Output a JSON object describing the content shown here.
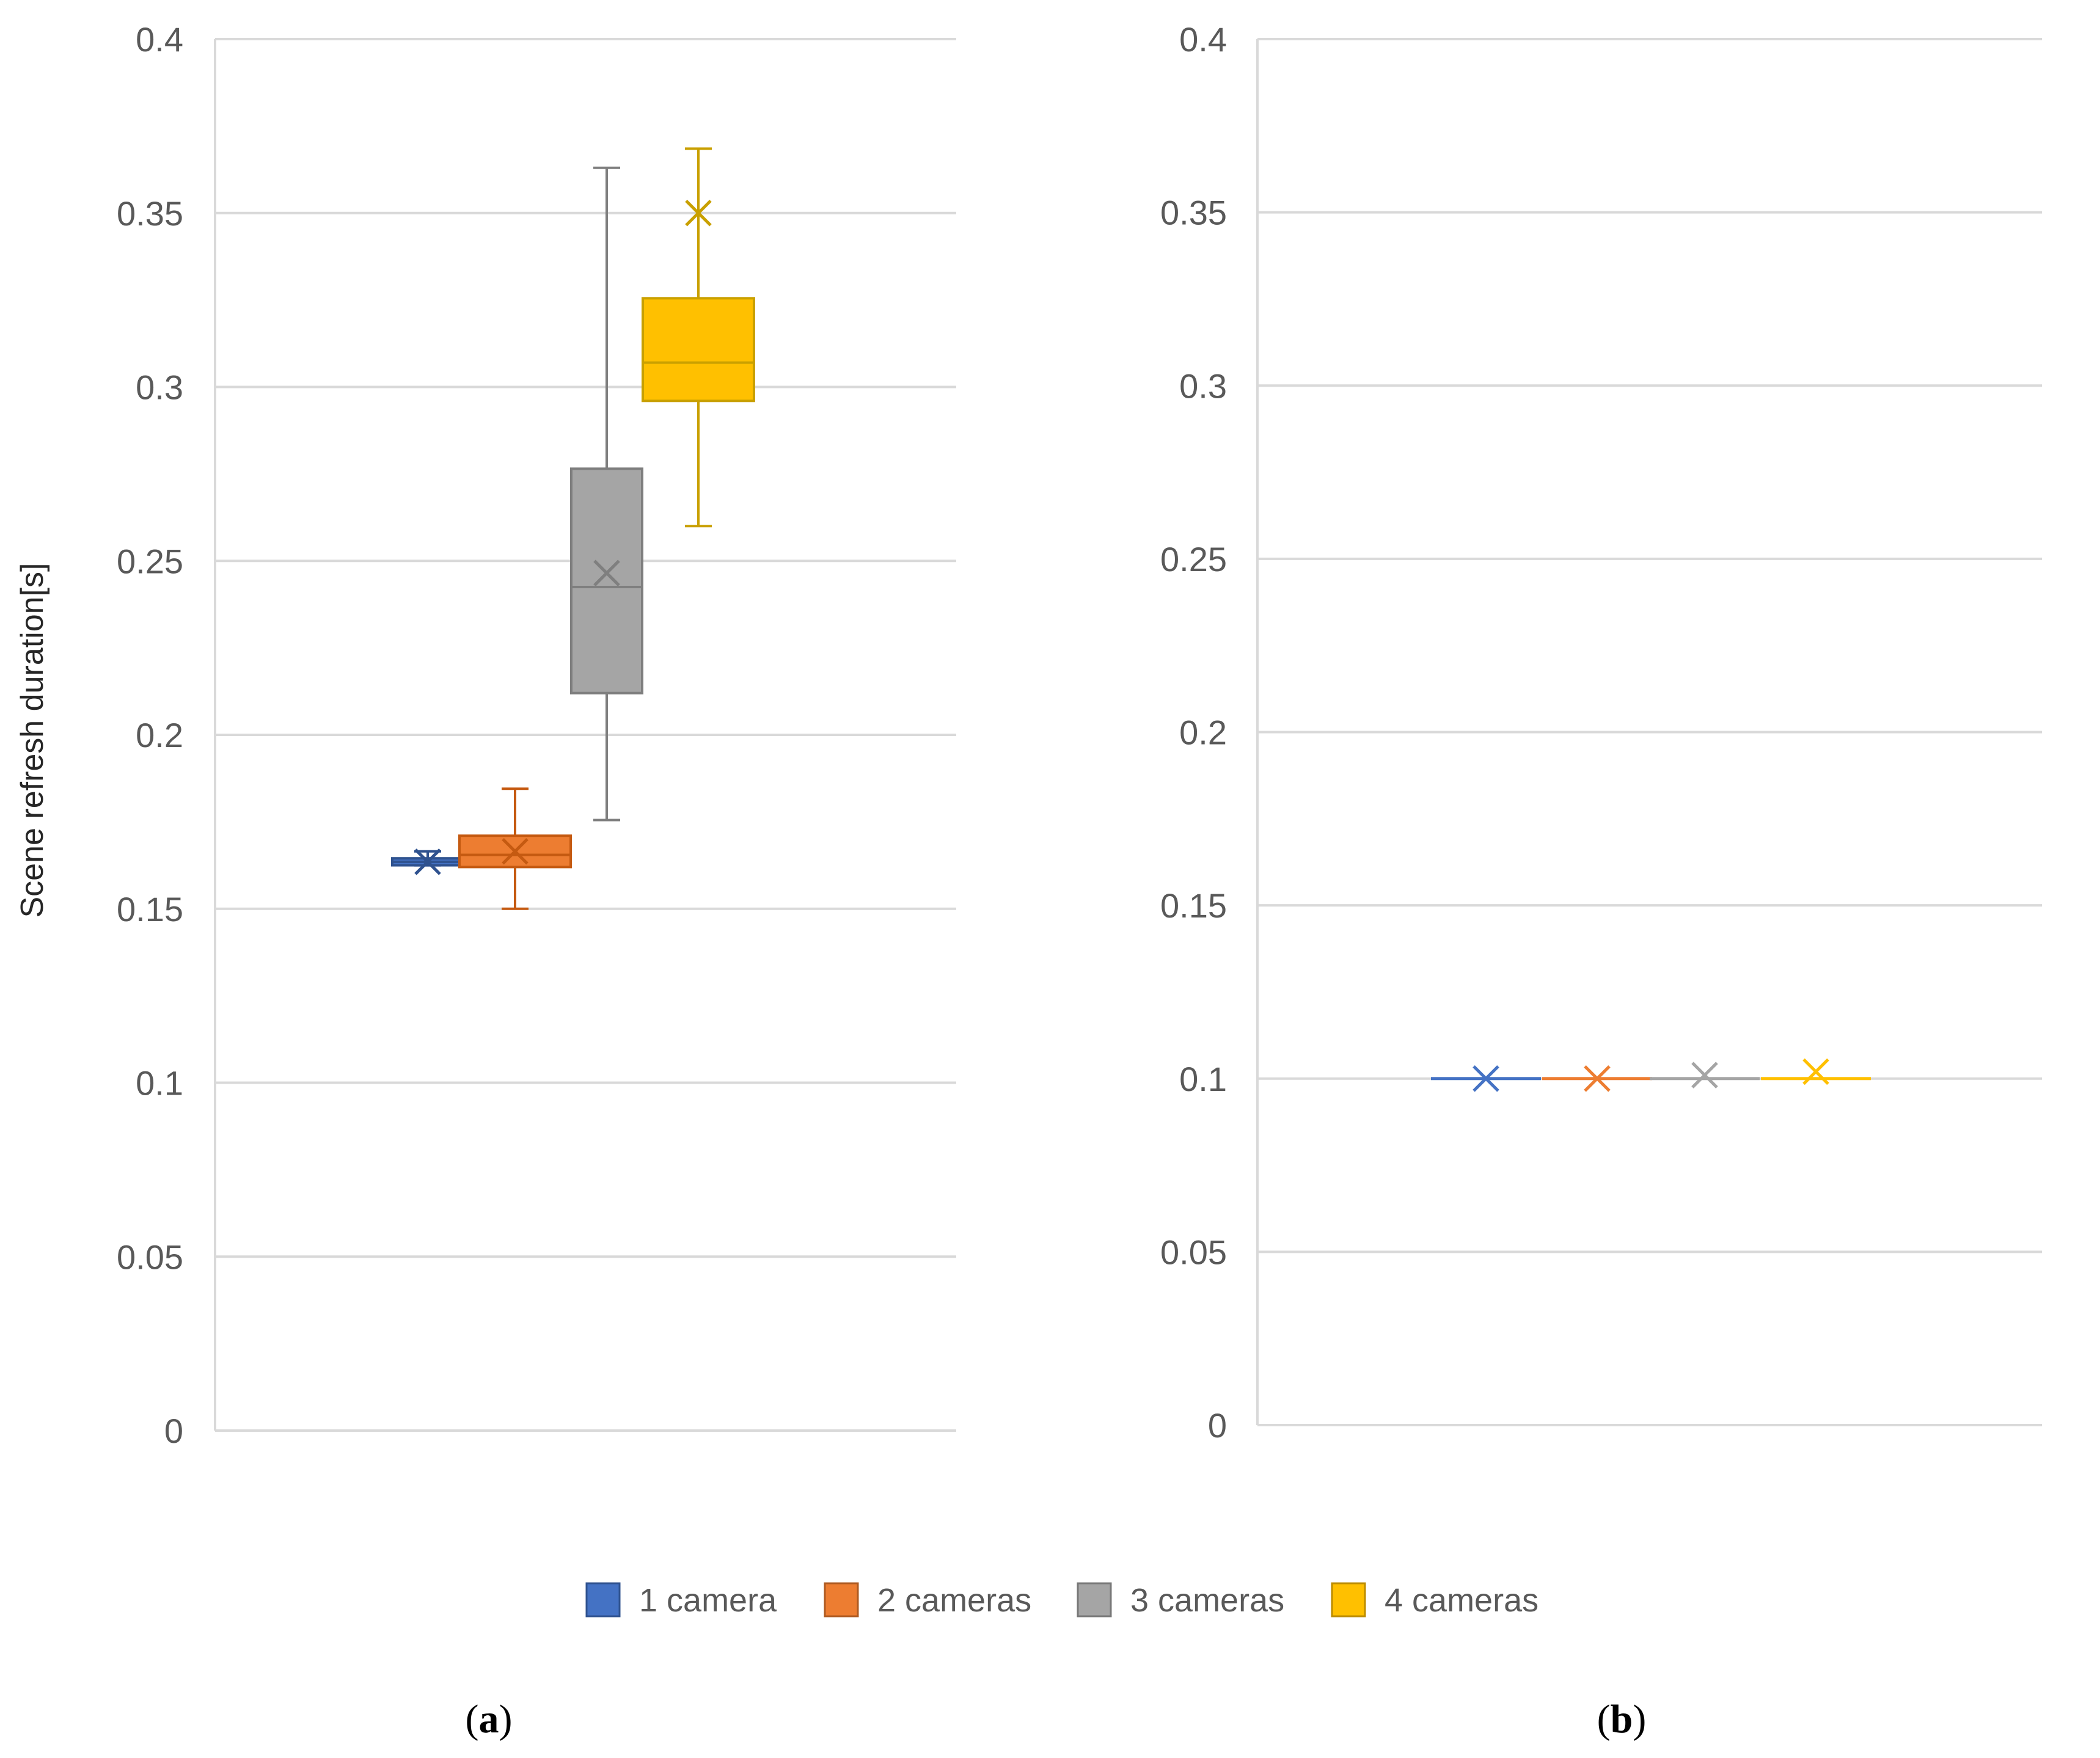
{
  "chart_data": [
    {
      "type": "box",
      "panel": "a",
      "caption": {
        "open": "(",
        "letter": "a",
        "close": ")"
      },
      "ylabel": "Scene refresh duration[s]",
      "ylim": [
        0,
        0.4
      ],
      "yticks": [
        "0",
        "0.05",
        "0.1",
        "0.15",
        "0.2",
        "0.25",
        "0.3",
        "0.35",
        "0.4"
      ],
      "grid": true,
      "series": [
        {
          "name": "1 camera",
          "color": "#4472c4",
          "min": 0.1625,
          "q1": 0.1625,
          "median": 0.1635,
          "q3": 0.1645,
          "max": 0.1665,
          "mean": 0.1635
        },
        {
          "name": "2 cameras",
          "color": "#ed7d31",
          "min": 0.15,
          "q1": 0.162,
          "median": 0.1655,
          "q3": 0.171,
          "max": 0.1845,
          "mean": 0.1665
        },
        {
          "name": "3 cameras",
          "color": "#a5a5a5",
          "min": 0.1755,
          "q1": 0.212,
          "median": 0.2425,
          "q3": 0.2765,
          "max": 0.363,
          "mean": 0.2465
        },
        {
          "name": "4 cameras",
          "color": "#ffc000",
          "min": 0.26,
          "q1": 0.296,
          "median": 0.307,
          "q3": 0.3255,
          "max": 0.3685,
          "mean": 0.35
        }
      ]
    },
    {
      "type": "box",
      "panel": "b",
      "caption": {
        "open": "(",
        "letter": "b",
        "close": ")"
      },
      "ylabel": "",
      "ylim": [
        0,
        0.4
      ],
      "yticks": [
        "0",
        "0.05",
        "0.1",
        "0.15",
        "0.2",
        "0.25",
        "0.3",
        "0.35",
        "0.4"
      ],
      "grid": true,
      "series": [
        {
          "name": "1 camera",
          "color": "#4472c4",
          "min": 0.1,
          "q1": 0.1,
          "median": 0.1,
          "q3": 0.1,
          "max": 0.1,
          "mean": 0.1
        },
        {
          "name": "2 cameras",
          "color": "#ed7d31",
          "min": 0.1,
          "q1": 0.1,
          "median": 0.1,
          "q3": 0.1,
          "max": 0.1,
          "mean": 0.1
        },
        {
          "name": "3 cameras",
          "color": "#a5a5a5",
          "min": 0.1,
          "q1": 0.1,
          "median": 0.1,
          "q3": 0.1,
          "max": 0.1,
          "mean": 0.101
        },
        {
          "name": "4 cameras",
          "color": "#ffc000",
          "min": 0.1,
          "q1": 0.1,
          "median": 0.1,
          "q3": 0.1,
          "max": 0.1,
          "mean": 0.102
        }
      ]
    }
  ],
  "legend": {
    "position": "bottom-center",
    "items": [
      {
        "label": "1 camera",
        "color": "#4472c4",
        "border": "#2f528f"
      },
      {
        "label": "2 cameras",
        "color": "#ed7d31",
        "border": "#ae5a21"
      },
      {
        "label": "3 cameras",
        "color": "#a5a5a5",
        "border": "#787878"
      },
      {
        "label": "4 cameras",
        "color": "#ffc000",
        "border": "#bc8c00"
      }
    ]
  },
  "stroke_colors": {
    "1 camera": "#2f528f",
    "2 cameras": "#c55a11",
    "3 cameras": "#7f7f7f",
    "4 cameras": "#c9a000"
  }
}
